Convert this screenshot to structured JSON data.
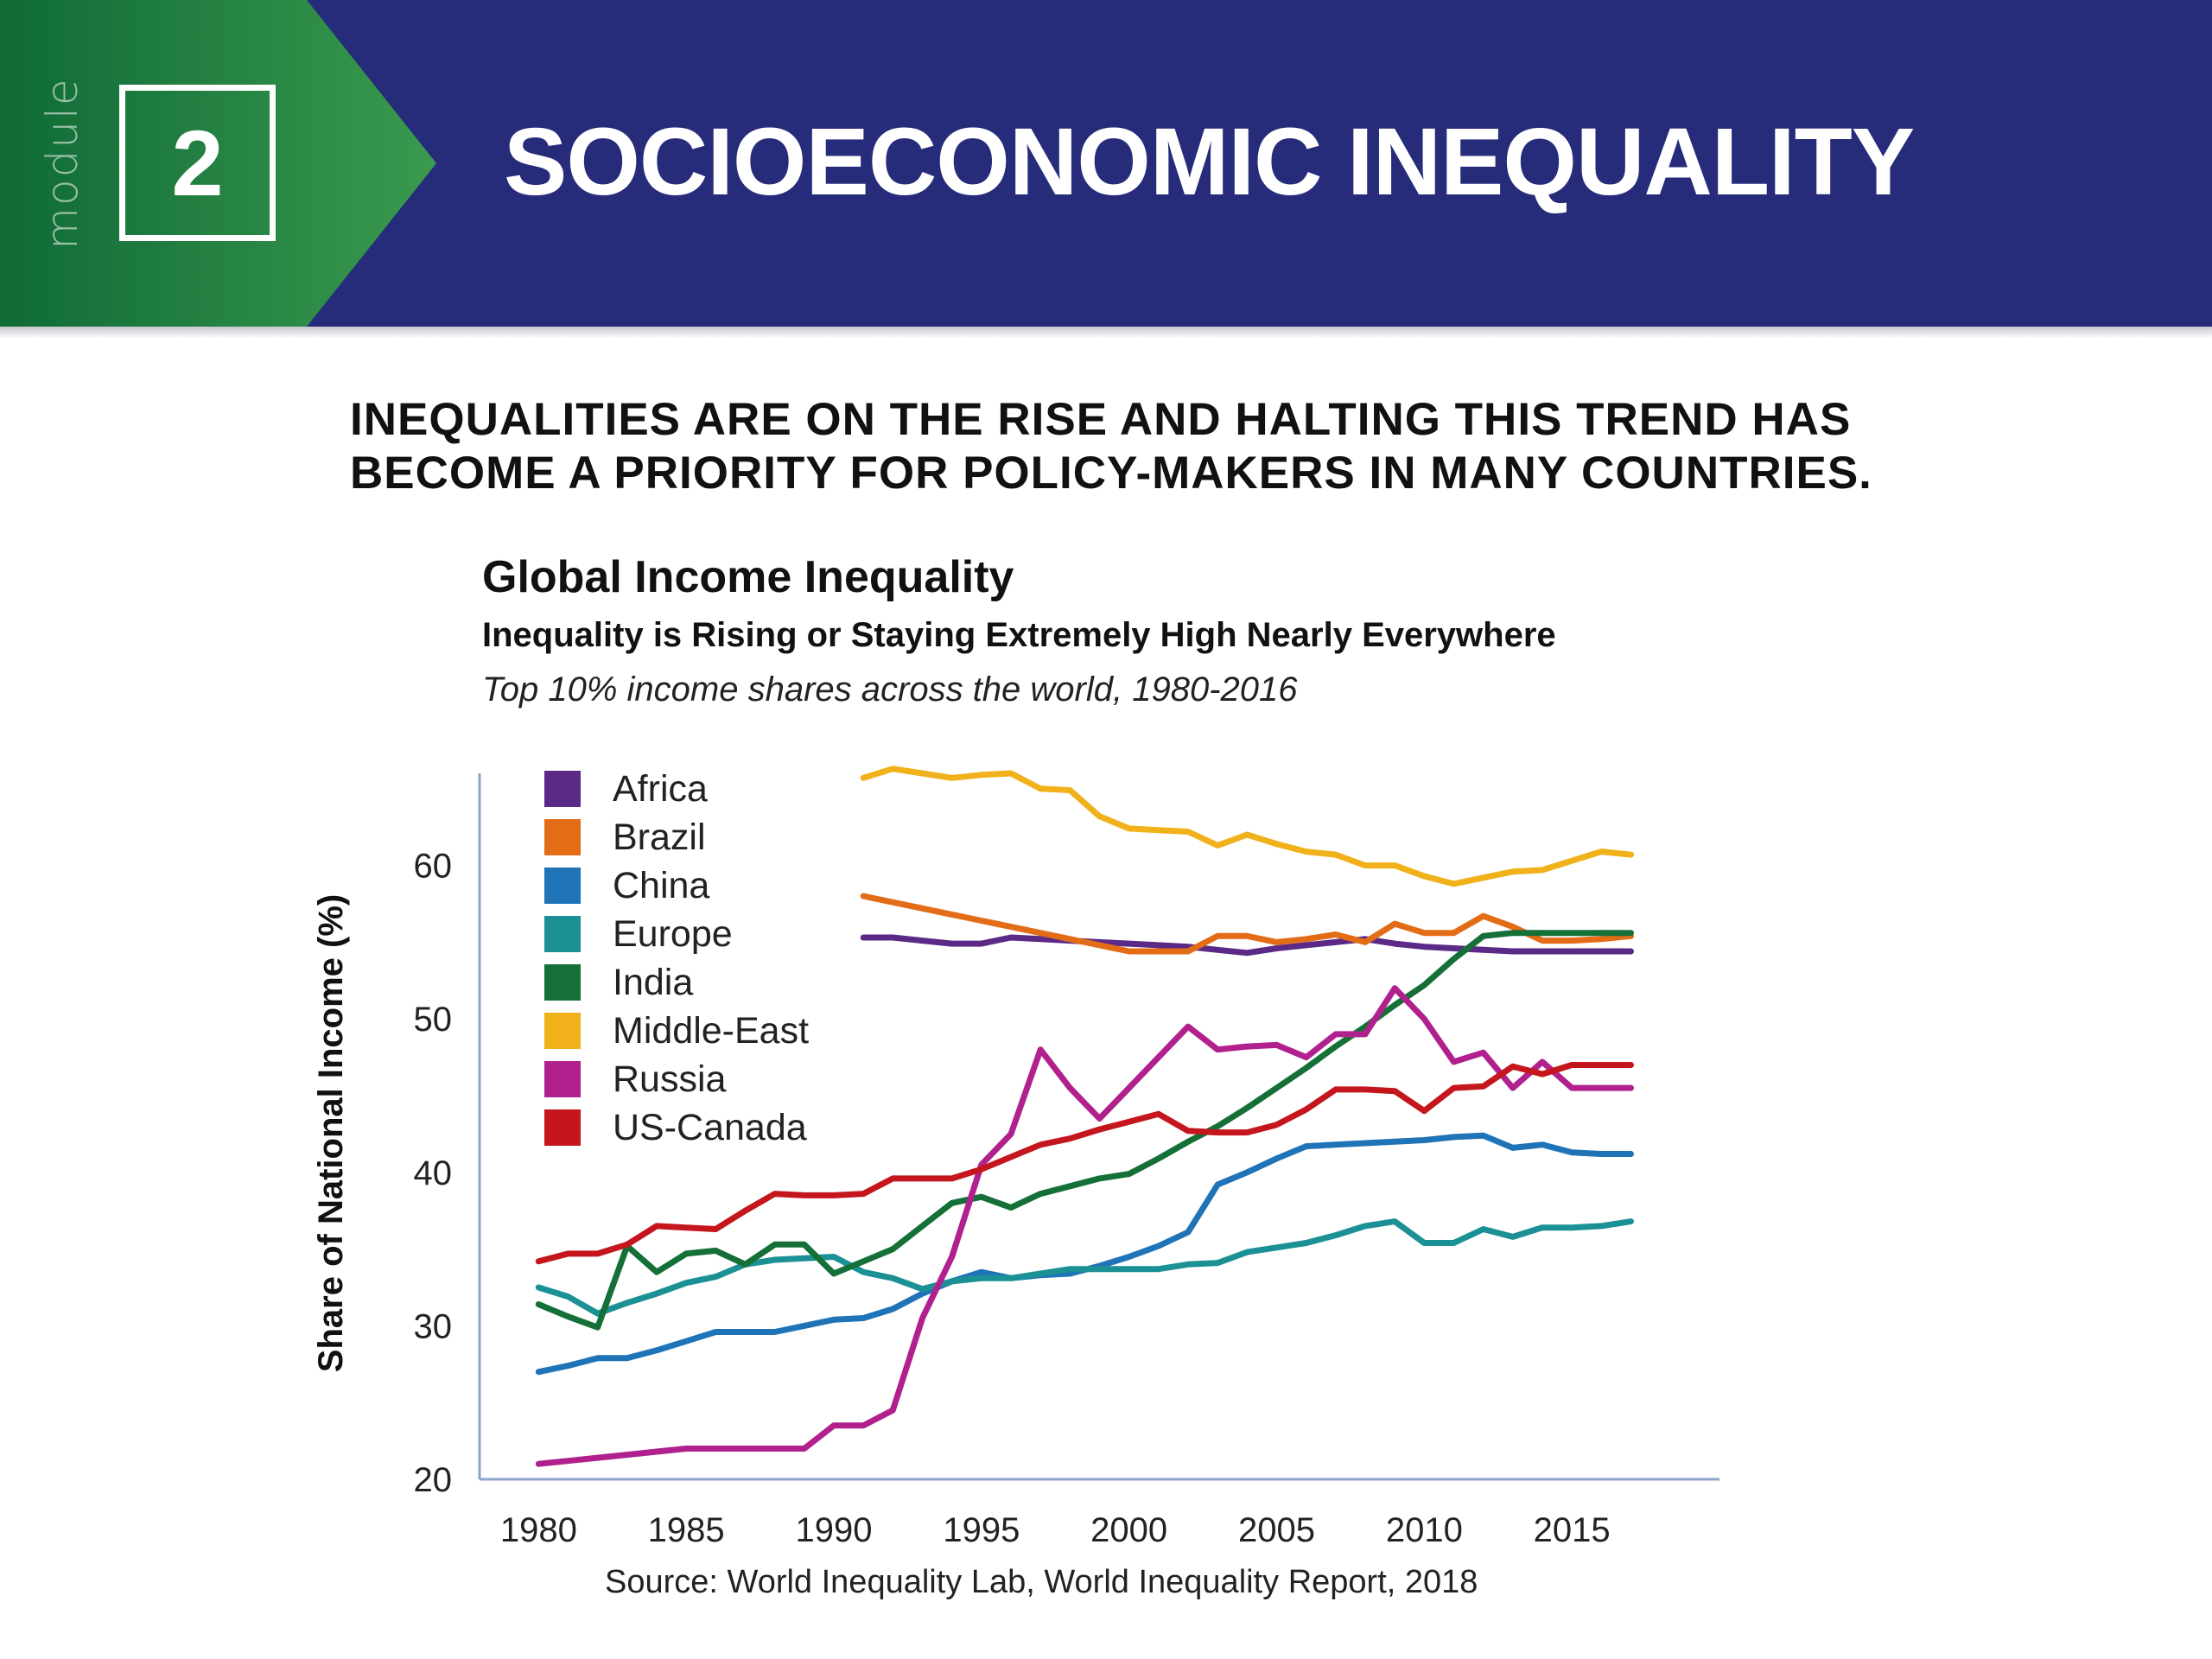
{
  "banner": {
    "module_label": "module",
    "module_number": "2",
    "title": "SOCIOECONOMIC INEQUALITY",
    "colors": {
      "band": "#262b7a",
      "chevron_dark": "#0f6a36",
      "chevron_light": "#3a9a4f"
    }
  },
  "headline": {
    "line1": "INEQUALITIES ARE ON THE RISE AND HALTING THIS TREND HAS",
    "line2": "BECOME A PRIORITY FOR POLICY-MAKERS IN MANY COUNTRIES."
  },
  "source": "Source: World Inequality Lab, World Inequality Report, 2018",
  "chart_data": {
    "type": "line",
    "title": "Global Income Inequality",
    "subtitle": "Inequality is Rising or Staying Extremely High Nearly Everywhere",
    "caption": "Top 10% income shares across the world, 1980-2016",
    "xlabel": "",
    "ylabel": "Share of National Income (%)",
    "xlim": [
      1978,
      2020
    ],
    "ylim": [
      20,
      66
    ],
    "xticks": [
      1980,
      1985,
      1990,
      1995,
      2000,
      2005,
      2010,
      2015
    ],
    "yticks": [
      20,
      30,
      40,
      50,
      60
    ],
    "grid": false,
    "legend_position": "top-left",
    "series": [
      {
        "name": "Africa",
        "color": "#5b2a86",
        "x": [
          1991,
          1992,
          1993,
          1994,
          1995,
          1996,
          1997,
          1998,
          1999,
          2000,
          2001,
          2002,
          2003,
          2004,
          2005,
          2006,
          2007,
          2008,
          2009,
          2010,
          2011,
          2012,
          2013,
          2014,
          2015,
          2016,
          2017
        ],
        "y": [
          55.3,
          55.3,
          55.1,
          54.9,
          54.9,
          55.3,
          55.2,
          55.1,
          55.0,
          54.9,
          54.8,
          54.7,
          54.5,
          54.3,
          54.6,
          54.8,
          55.0,
          55.2,
          54.9,
          54.7,
          54.6,
          54.5,
          54.4,
          54.4,
          54.4,
          54.4,
          54.4
        ]
      },
      {
        "name": "Brazil",
        "color": "#e36c17",
        "x": [
          1991,
          1992,
          1993,
          1994,
          1995,
          1996,
          1997,
          1998,
          1999,
          2000,
          2001,
          2002,
          2003,
          2004,
          2005,
          2006,
          2007,
          2008,
          2009,
          2010,
          2011,
          2012,
          2013,
          2014,
          2015,
          2016,
          2017
        ],
        "y": [
          58.0,
          57.6,
          57.2,
          56.8,
          56.4,
          56.0,
          55.6,
          55.2,
          54.8,
          54.4,
          54.4,
          54.4,
          55.4,
          55.4,
          55.0,
          55.2,
          55.5,
          55.0,
          56.2,
          55.6,
          55.6,
          56.7,
          56.0,
          55.1,
          55.1,
          55.2,
          55.4
        ]
      },
      {
        "name": "China",
        "color": "#1f73b7",
        "x": [
          1980,
          1981,
          1982,
          1983,
          1984,
          1985,
          1986,
          1987,
          1988,
          1989,
          1990,
          1991,
          1992,
          1993,
          1994,
          1995,
          1996,
          1997,
          1998,
          1999,
          2000,
          2001,
          2002,
          2003,
          2004,
          2005,
          2006,
          2007,
          2008,
          2009,
          2010,
          2011,
          2012,
          2013,
          2014,
          2015,
          2016,
          2017
        ],
        "y": [
          27.0,
          27.4,
          27.9,
          27.9,
          28.4,
          29.0,
          29.6,
          29.6,
          29.6,
          30.0,
          30.4,
          30.5,
          31.1,
          32.1,
          32.9,
          33.5,
          33.1,
          33.3,
          33.4,
          33.9,
          34.5,
          35.2,
          36.1,
          39.2,
          40.0,
          40.9,
          41.7,
          41.8,
          41.9,
          42.0,
          42.1,
          42.3,
          42.4,
          41.6,
          41.8,
          41.3,
          41.2,
          41.2
        ]
      },
      {
        "name": "Europe",
        "color": "#1b9095",
        "x": [
          1980,
          1981,
          1982,
          1983,
          1984,
          1985,
          1986,
          1987,
          1988,
          1989,
          1990,
          1991,
          1992,
          1993,
          1994,
          1995,
          1996,
          1997,
          1998,
          1999,
          2000,
          2001,
          2002,
          2003,
          2004,
          2005,
          2006,
          2007,
          2008,
          2009,
          2010,
          2011,
          2012,
          2013,
          2014,
          2015,
          2016,
          2017
        ],
        "y": [
          32.5,
          31.9,
          30.8,
          31.5,
          32.1,
          32.8,
          33.2,
          34.0,
          34.3,
          34.4,
          34.5,
          33.5,
          33.1,
          32.4,
          32.9,
          33.1,
          33.1,
          33.4,
          33.7,
          33.7,
          33.7,
          33.7,
          34.0,
          34.1,
          34.8,
          35.1,
          35.4,
          35.9,
          36.5,
          36.8,
          35.4,
          35.4,
          36.3,
          35.8,
          36.4,
          36.4,
          36.5,
          36.8
        ]
      },
      {
        "name": "India",
        "color": "#157038",
        "x": [
          1980,
          1981,
          1982,
          1983,
          1984,
          1985,
          1986,
          1987,
          1988,
          1989,
          1990,
          1991,
          1992,
          1993,
          1994,
          1995,
          1996,
          1997,
          1998,
          1999,
          2000,
          2001,
          2002,
          2003,
          2004,
          2005,
          2006,
          2007,
          2008,
          2009,
          2010,
          2011,
          2012,
          2013,
          2014,
          2015,
          2016,
          2017
        ],
        "y": [
          31.4,
          30.6,
          29.9,
          35.2,
          33.5,
          34.7,
          34.9,
          34.0,
          35.3,
          35.3,
          33.4,
          34.2,
          35.0,
          36.5,
          38.0,
          38.4,
          37.7,
          38.6,
          39.1,
          39.6,
          39.9,
          40.9,
          42.0,
          43.0,
          44.2,
          45.5,
          46.8,
          48.2,
          49.5,
          50.9,
          52.2,
          53.9,
          55.4,
          55.6,
          55.6,
          55.6,
          55.6,
          55.6
        ]
      },
      {
        "name": "Middle-East",
        "color": "#f0b11a",
        "x": [
          1991,
          1992,
          1993,
          1994,
          1995,
          1996,
          1997,
          1998,
          1999,
          2000,
          2001,
          2002,
          2003,
          2004,
          2005,
          2006,
          2007,
          2008,
          2009,
          2010,
          2011,
          2012,
          2013,
          2014,
          2015,
          2016,
          2017
        ],
        "y": [
          65.7,
          66.3,
          66.0,
          65.7,
          65.9,
          66.0,
          65.0,
          64.9,
          63.2,
          62.4,
          62.3,
          62.2,
          61.3,
          62.0,
          61.4,
          60.9,
          60.7,
          60.0,
          60.0,
          59.3,
          58.8,
          59.2,
          59.6,
          59.7,
          60.3,
          60.9,
          60.7
        ]
      },
      {
        "name": "Russia",
        "color": "#b0218e",
        "x": [
          1980,
          1981,
          1982,
          1983,
          1984,
          1985,
          1986,
          1987,
          1988,
          1989,
          1990,
          1991,
          1992,
          1993,
          1994,
          1995,
          1996,
          1997,
          1998,
          1999,
          2000,
          2001,
          2002,
          2003,
          2004,
          2005,
          2006,
          2007,
          2008,
          2009,
          2010,
          2011,
          2012,
          2013,
          2014,
          2015,
          2016,
          2017
        ],
        "y": [
          21.0,
          21.2,
          21.4,
          21.6,
          21.8,
          22.0,
          22.0,
          22.0,
          22.0,
          22.0,
          23.5,
          23.5,
          24.5,
          30.5,
          34.5,
          40.5,
          42.5,
          48.0,
          45.5,
          43.5,
          45.5,
          47.5,
          49.5,
          48.0,
          48.2,
          48.3,
          47.5,
          49.0,
          49.0,
          52.0,
          50.0,
          47.2,
          47.8,
          45.5,
          47.2,
          45.5,
          45.5,
          45.5
        ]
      },
      {
        "name": "US-Canada",
        "color": "#c4161c",
        "x": [
          1980,
          1981,
          1982,
          1983,
          1984,
          1985,
          1986,
          1987,
          1988,
          1989,
          1990,
          1991,
          1992,
          1993,
          1994,
          1995,
          1996,
          1997,
          1998,
          1999,
          2000,
          2001,
          2002,
          2003,
          2004,
          2005,
          2006,
          2007,
          2008,
          2009,
          2010,
          2011,
          2012,
          2013,
          2014,
          2015,
          2016,
          2017
        ],
        "y": [
          34.2,
          34.7,
          34.7,
          35.3,
          36.5,
          36.4,
          36.3,
          37.5,
          38.6,
          38.5,
          38.5,
          38.6,
          39.6,
          39.6,
          39.6,
          40.2,
          41.0,
          41.8,
          42.2,
          42.8,
          43.3,
          43.8,
          42.7,
          42.6,
          42.6,
          43.1,
          44.1,
          45.4,
          45.4,
          45.3,
          44.0,
          45.5,
          45.6,
          46.9,
          46.4,
          47.0,
          47.0,
          47.0
        ]
      }
    ]
  }
}
